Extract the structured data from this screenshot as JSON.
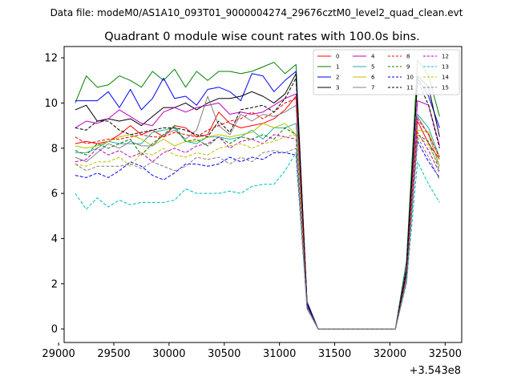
{
  "chart_data": {
    "type": "line",
    "suptitle": "Data file: modeM0/AS1A10_093T01_9000004274_29676cztM0_level2_quad_clean.evt",
    "title": "Quadrant 0 module wise count rates with 100.0s bins.",
    "xlabel": "",
    "ylabel": "",
    "x_offset_label": "+3.543e8",
    "xlim": [
      29050,
      32650
    ],
    "ylim": [
      -0.6,
      12.5
    ],
    "xticks": [
      29000,
      29500,
      30000,
      30500,
      31000,
      31500,
      32000,
      32500
    ],
    "yticks": [
      0,
      2,
      4,
      6,
      8,
      10,
      12
    ],
    "legend_position": "top-right",
    "x": [
      29150,
      29250,
      29350,
      29450,
      29550,
      29650,
      29750,
      29850,
      29950,
      30050,
      30150,
      30250,
      30350,
      30450,
      30550,
      30650,
      30750,
      30850,
      30950,
      31050,
      31150,
      31250,
      31350,
      31450,
      31550,
      31650,
      31750,
      31850,
      31950,
      32050,
      32150,
      32250,
      32350,
      32450
    ],
    "series": [
      {
        "name": "0",
        "color": "#ff0000",
        "dash": "solid",
        "values": [
          8.2,
          8.3,
          8.2,
          8.3,
          8.6,
          9.0,
          8.6,
          8.8,
          8.5,
          9.0,
          8.9,
          8.5,
          8.6,
          9.6,
          9.1,
          8.9,
          9.0,
          9.1,
          9.3,
          9.7,
          10.3,
          1.1,
          0,
          0,
          0,
          0,
          0,
          0,
          0,
          0,
          2.3,
          9.2,
          8.2,
          7.5
        ]
      },
      {
        "name": "1",
        "color": "#008000",
        "dash": "solid",
        "values": [
          10.0,
          11.2,
          10.7,
          10.8,
          11.2,
          11.0,
          10.7,
          11.4,
          11.0,
          11.5,
          10.7,
          11.4,
          11.0,
          11.4,
          11.4,
          11.3,
          11.4,
          11.6,
          11.8,
          11.3,
          11.7,
          1.0,
          0,
          0,
          0,
          0,
          0,
          0,
          0,
          0,
          3.0,
          11.9,
          11.2,
          9.4
        ]
      },
      {
        "name": "2",
        "color": "#0000ff",
        "dash": "solid",
        "values": [
          10.1,
          10.1,
          10.1,
          10.5,
          9.8,
          10.6,
          9.7,
          10.2,
          11.1,
          10.2,
          10.3,
          9.9,
          10.6,
          10.7,
          10.5,
          10.1,
          11.3,
          11.2,
          10.5,
          11.0,
          11.4,
          1.2,
          0,
          0,
          0,
          0,
          0,
          0,
          0,
          0,
          2.7,
          11.1,
          10.3,
          8.9
        ]
      },
      {
        "name": "3",
        "color": "#000000",
        "dash": "solid",
        "values": [
          9.7,
          9.9,
          9.2,
          9.3,
          9.2,
          9.3,
          9.0,
          9.4,
          9.8,
          9.8,
          10.0,
          9.7,
          10.0,
          10.2,
          10.2,
          10.3,
          10.5,
          10.3,
          10.0,
          10.4,
          11.3,
          1.1,
          0,
          0,
          0,
          0,
          0,
          0,
          0,
          0,
          2.6,
          11.2,
          10.7,
          8.5
        ]
      },
      {
        "name": "4",
        "color": "#bf00bf",
        "dash": "solid",
        "values": [
          8.9,
          9.2,
          9.1,
          9.3,
          9.7,
          9.4,
          9.1,
          9.0,
          9.6,
          9.8,
          9.6,
          9.8,
          9.9,
          10.0,
          9.5,
          9.6,
          9.5,
          9.6,
          9.9,
          10.2,
          10.4,
          1.0,
          0,
          0,
          0,
          0,
          0,
          0,
          0,
          0,
          2.5,
          10.1,
          9.9,
          8.1
        ]
      },
      {
        "name": "5",
        "color": "#20b2aa",
        "dash": "solid",
        "values": [
          7.8,
          7.8,
          8.0,
          8.3,
          8.2,
          8.2,
          8.2,
          8.7,
          8.8,
          8.9,
          8.3,
          8.2,
          8.5,
          8.5,
          8.4,
          8.5,
          8.8,
          8.4,
          8.9,
          8.9,
          9.1,
          1.0,
          0,
          0,
          0,
          0,
          0,
          0,
          0,
          0,
          2.4,
          9.5,
          8.9,
          7.6
        ]
      },
      {
        "name": "6",
        "color": "#bfbf00",
        "dash": "solid",
        "values": [
          8.1,
          8.0,
          8.1,
          8.3,
          8.5,
          8.6,
          8.4,
          8.1,
          8.4,
          8.1,
          8.3,
          8.3,
          8.5,
          8.6,
          8.5,
          8.6,
          8.7,
          9.1,
          8.9,
          9.1,
          8.6,
          1.0,
          0,
          0,
          0,
          0,
          0,
          0,
          0,
          0,
          2.3,
          8.8,
          8.7,
          7.5
        ]
      },
      {
        "name": "7",
        "color": "#808080",
        "dash": "solid",
        "values": [
          7.6,
          7.4,
          7.8,
          8.2,
          8.0,
          8.3,
          8.1,
          8.1,
          8.6,
          8.8,
          8.4,
          8.8,
          10.3,
          9.0,
          8.6,
          9.5,
          9.2,
          9.5,
          9.4,
          9.6,
          9.9,
          1.0,
          0,
          0,
          0,
          0,
          0,
          0,
          0,
          0,
          2.4,
          9.4,
          8.6,
          7.2
        ]
      },
      {
        "name": "8",
        "color": "#ff0000",
        "dash": "dashed",
        "values": [
          8.5,
          8.2,
          8.3,
          8.4,
          8.4,
          8.5,
          8.6,
          8.5,
          8.5,
          8.7,
          8.6,
          8.5,
          8.8,
          9.0,
          9.2,
          9.3,
          9.6,
          9.3,
          9.6,
          10.0,
          10.2,
          1.0,
          0,
          0,
          0,
          0,
          0,
          0,
          0,
          0,
          2.5,
          9.3,
          8.6,
          7.6
        ]
      },
      {
        "name": "9",
        "color": "#008000",
        "dash": "dashed",
        "values": [
          7.9,
          7.7,
          8.2,
          8.0,
          8.2,
          8.4,
          7.7,
          8.2,
          8.6,
          9.0,
          8.3,
          8.4,
          8.1,
          8.5,
          8.2,
          8.5,
          8.4,
          8.6,
          8.4,
          8.9,
          8.6,
          0.9,
          0,
          0,
          0,
          0,
          0,
          0,
          0,
          0,
          2.2,
          8.6,
          8.3,
          7.0
        ]
      },
      {
        "name": "10",
        "color": "#0000ff",
        "dash": "dashed",
        "values": [
          6.8,
          6.7,
          6.9,
          6.7,
          7.0,
          7.4,
          7.2,
          6.8,
          6.6,
          6.9,
          7.3,
          7.3,
          7.2,
          7.3,
          7.6,
          7.4,
          7.6,
          7.5,
          7.8,
          7.8,
          7.7,
          0.9,
          0,
          0,
          0,
          0,
          0,
          0,
          0,
          0,
          2.1,
          8.3,
          7.4,
          6.7
        ]
      },
      {
        "name": "11",
        "color": "#000000",
        "dash": "dashed",
        "values": [
          8.9,
          8.8,
          9.2,
          9.2,
          8.8,
          8.6,
          8.7,
          8.8,
          8.9,
          8.9,
          8.8,
          8.6,
          8.5,
          9.2,
          8.7,
          9.7,
          9.8,
          9.9,
          9.6,
          10.2,
          11.1,
          1.1,
          0,
          0,
          0,
          0,
          0,
          0,
          0,
          0,
          2.5,
          11.0,
          9.9,
          8.0
        ]
      },
      {
        "name": "12",
        "color": "#bf00bf",
        "dash": "dashed",
        "values": [
          7.4,
          7.5,
          8.0,
          7.7,
          7.9,
          7.6,
          7.8,
          7.4,
          7.8,
          8.0,
          7.8,
          8.1,
          8.2,
          8.5,
          8.0,
          8.3,
          8.4,
          8.2,
          8.6,
          8.5,
          8.4,
          1.0,
          0,
          0,
          0,
          0,
          0,
          0,
          0,
          0,
          2.2,
          8.7,
          7.9,
          6.9
        ]
      },
      {
        "name": "13",
        "color": "#00bfbf",
        "dash": "dashed",
        "values": [
          6.0,
          5.3,
          5.8,
          5.4,
          5.7,
          5.5,
          5.6,
          5.6,
          5.6,
          5.7,
          6.2,
          6.0,
          6.0,
          6.0,
          6.1,
          6.0,
          6.3,
          6.4,
          6.4,
          7.0,
          7.8,
          0.9,
          0,
          0,
          0,
          0,
          0,
          0,
          0,
          0,
          2.0,
          7.4,
          6.4,
          5.6
        ]
      },
      {
        "name": "14",
        "color": "#bfbf00",
        "dash": "dashed",
        "values": [
          7.3,
          7.2,
          7.4,
          7.4,
          7.6,
          7.2,
          7.8,
          7.7,
          8.0,
          7.7,
          7.6,
          7.8,
          7.7,
          8.0,
          8.1,
          8.2,
          8.0,
          8.2,
          8.3,
          8.5,
          8.6,
          0.9,
          0,
          0,
          0,
          0,
          0,
          0,
          0,
          0,
          2.1,
          8.6,
          8.1,
          7.2
        ]
      },
      {
        "name": "15",
        "color": "#808080",
        "dash": "dashed",
        "values": [
          7.3,
          7.0,
          7.2,
          7.2,
          7.2,
          7.3,
          7.1,
          7.4,
          7.2,
          7.0,
          7.2,
          7.6,
          7.5,
          7.6,
          7.3,
          7.6,
          7.4,
          7.8,
          7.9,
          7.8,
          8.0,
          0.9,
          0,
          0,
          0,
          0,
          0,
          0,
          0,
          0,
          2.1,
          8.5,
          7.6,
          6.6
        ]
      }
    ]
  }
}
